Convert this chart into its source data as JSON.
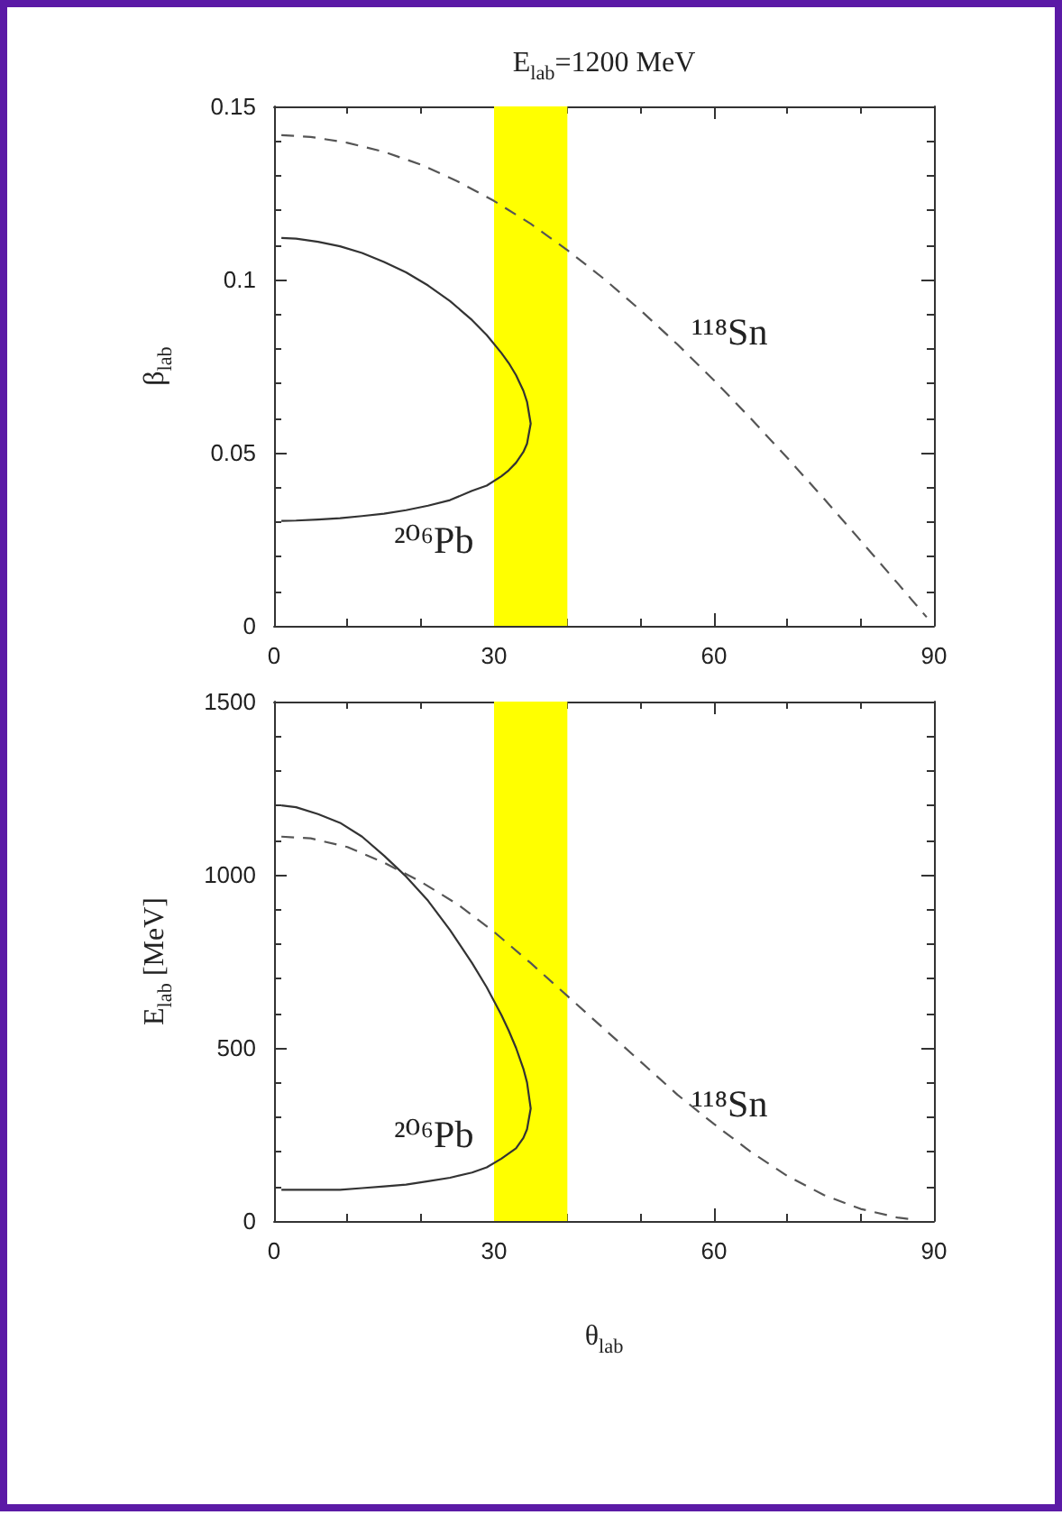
{
  "chart_data": [
    {
      "type": "line",
      "title": "E$_{lab}$=1200 MeV",
      "ylabel": "β$_{lab}$",
      "marker": "none",
      "xlim": [
        0,
        90
      ],
      "xticks": [
        0,
        {
          "value": 10,
          "label": null
        },
        {
          "value": 20,
          "label": null
        },
        30,
        {
          "value": 40,
          "label": null
        },
        {
          "value": 50,
          "label": null
        },
        60,
        {
          "value": 70,
          "label": null
        },
        {
          "value": 80,
          "label": null
        },
        90
      ],
      "ylim": [
        0,
        0.15
      ],
      "yticks": [
        0,
        {
          "value": 0.01,
          "label": null
        },
        {
          "value": 0.02,
          "label": null
        },
        {
          "value": 0.03,
          "label": null
        },
        {
          "value": 0.04,
          "label": null
        },
        0.05,
        {
          "value": 0.06,
          "label": null
        },
        {
          "value": 0.07,
          "label": null
        },
        {
          "value": 0.08,
          "label": null
        },
        {
          "value": 0.09,
          "label": null
        },
        0.1,
        {
          "value": 0.11,
          "label": null
        },
        {
          "value": 0.12,
          "label": null
        },
        {
          "value": 0.13,
          "label": null
        },
        {
          "value": 0.14,
          "label": null
        },
        0.15
      ],
      "bands": [
        {
          "axis": "x",
          "from": 30,
          "to": 40,
          "color": "#ffff00"
        }
      ],
      "series": [
        {
          "name": "²⁰⁶Pb",
          "color": "#333333",
          "line_style": "solid",
          "x": [
            1,
            3,
            6,
            9,
            12,
            15,
            18,
            21,
            24,
            27,
            29,
            31,
            32,
            33,
            34,
            34.5,
            35,
            34.5,
            34,
            33,
            32,
            31,
            29,
            27,
            24,
            21,
            18,
            15,
            12,
            9,
            6,
            3,
            1
          ],
          "values": [
            0.112,
            0.1118,
            0.1109,
            0.1096,
            0.1077,
            0.1051,
            0.1021,
            0.0983,
            0.0938,
            0.0883,
            0.084,
            0.0788,
            0.0759,
            0.0724,
            0.0679,
            0.0647,
            0.0584,
            0.0526,
            0.0502,
            0.0471,
            0.0449,
            0.0432,
            0.0405,
            0.039,
            0.0363,
            0.0347,
            0.0334,
            0.0324,
            0.0317,
            0.0311,
            0.0307,
            0.0304,
            0.0303
          ]
        },
        {
          "name": "¹¹⁸Sn",
          "color": "#555555",
          "line_style": "dashed",
          "x": [
            1,
            5,
            10,
            15,
            20,
            25,
            30,
            35,
            40,
            45,
            50,
            55,
            60,
            65,
            70,
            75,
            80,
            85,
            89
          ],
          "values": [
            0.1417,
            0.1412,
            0.1395,
            0.1369,
            0.1332,
            0.1284,
            0.1227,
            0.1161,
            0.1085,
            0.1002,
            0.0911,
            0.0813,
            0.0709,
            0.0599,
            0.0485,
            0.0367,
            0.0246,
            0.0124,
            0.0025
          ]
        }
      ]
    },
    {
      "type": "line",
      "xlabel": "θ$_{lab}$",
      "ylabel": "E$_{lab}$ [MeV]",
      "marker": "none",
      "xlim": [
        0,
        90
      ],
      "xticks": [
        0,
        {
          "value": 10,
          "label": null
        },
        {
          "value": 20,
          "label": null
        },
        30,
        {
          "value": 40,
          "label": null
        },
        {
          "value": 50,
          "label": null
        },
        60,
        {
          "value": 70,
          "label": null
        },
        {
          "value": 80,
          "label": null
        },
        90
      ],
      "ylim": [
        0,
        1500
      ],
      "yticks": [
        0,
        {
          "value": 100,
          "label": null
        },
        {
          "value": 200,
          "label": null
        },
        {
          "value": 300,
          "label": null
        },
        {
          "value": 400,
          "label": null
        },
        500,
        {
          "value": 600,
          "label": null
        },
        {
          "value": 700,
          "label": null
        },
        {
          "value": 800,
          "label": null
        },
        {
          "value": 900,
          "label": null
        },
        1000,
        {
          "value": 1100,
          "label": null
        },
        {
          "value": 1200,
          "label": null
        },
        {
          "value": 1300,
          "label": null
        },
        {
          "value": 1400,
          "label": null
        },
        1500
      ],
      "bands": [
        {
          "axis": "x",
          "from": 30,
          "to": 40,
          "color": "#ffff00"
        }
      ],
      "series": [
        {
          "name": "²⁰⁶Pb",
          "color": "#333333",
          "line_style": "solid",
          "x": [
            1,
            3,
            6,
            9,
            12,
            15,
            18,
            21,
            24,
            27,
            29,
            31,
            32,
            33,
            34,
            34.5,
            35,
            34.5,
            34,
            33,
            32,
            31,
            29,
            27,
            24,
            21,
            18,
            15,
            12,
            9,
            6,
            3,
            1
          ],
          "values": [
            1200,
            1195,
            1175,
            1150,
            1110,
            1055,
            995,
            925,
            840,
            745,
            675,
            595,
            550,
            500,
            440,
            400,
            325,
            265,
            240,
            210,
            195,
            180,
            155,
            140,
            125,
            115,
            105,
            100,
            95,
            90,
            90,
            90,
            90
          ]
        },
        {
          "name": "¹¹⁸Sn",
          "color": "#555555",
          "line_style": "dashed",
          "x": [
            1,
            5,
            10,
            15,
            20,
            25,
            30,
            35,
            40,
            45,
            50,
            55,
            60,
            65,
            70,
            75,
            80,
            85,
            87
          ],
          "values": [
            1110,
            1105,
            1080,
            1035,
            980,
            915,
            835,
            745,
            650,
            555,
            460,
            365,
            280,
            200,
            130,
            75,
            35,
            10,
            5
          ]
        }
      ]
    }
  ]
}
